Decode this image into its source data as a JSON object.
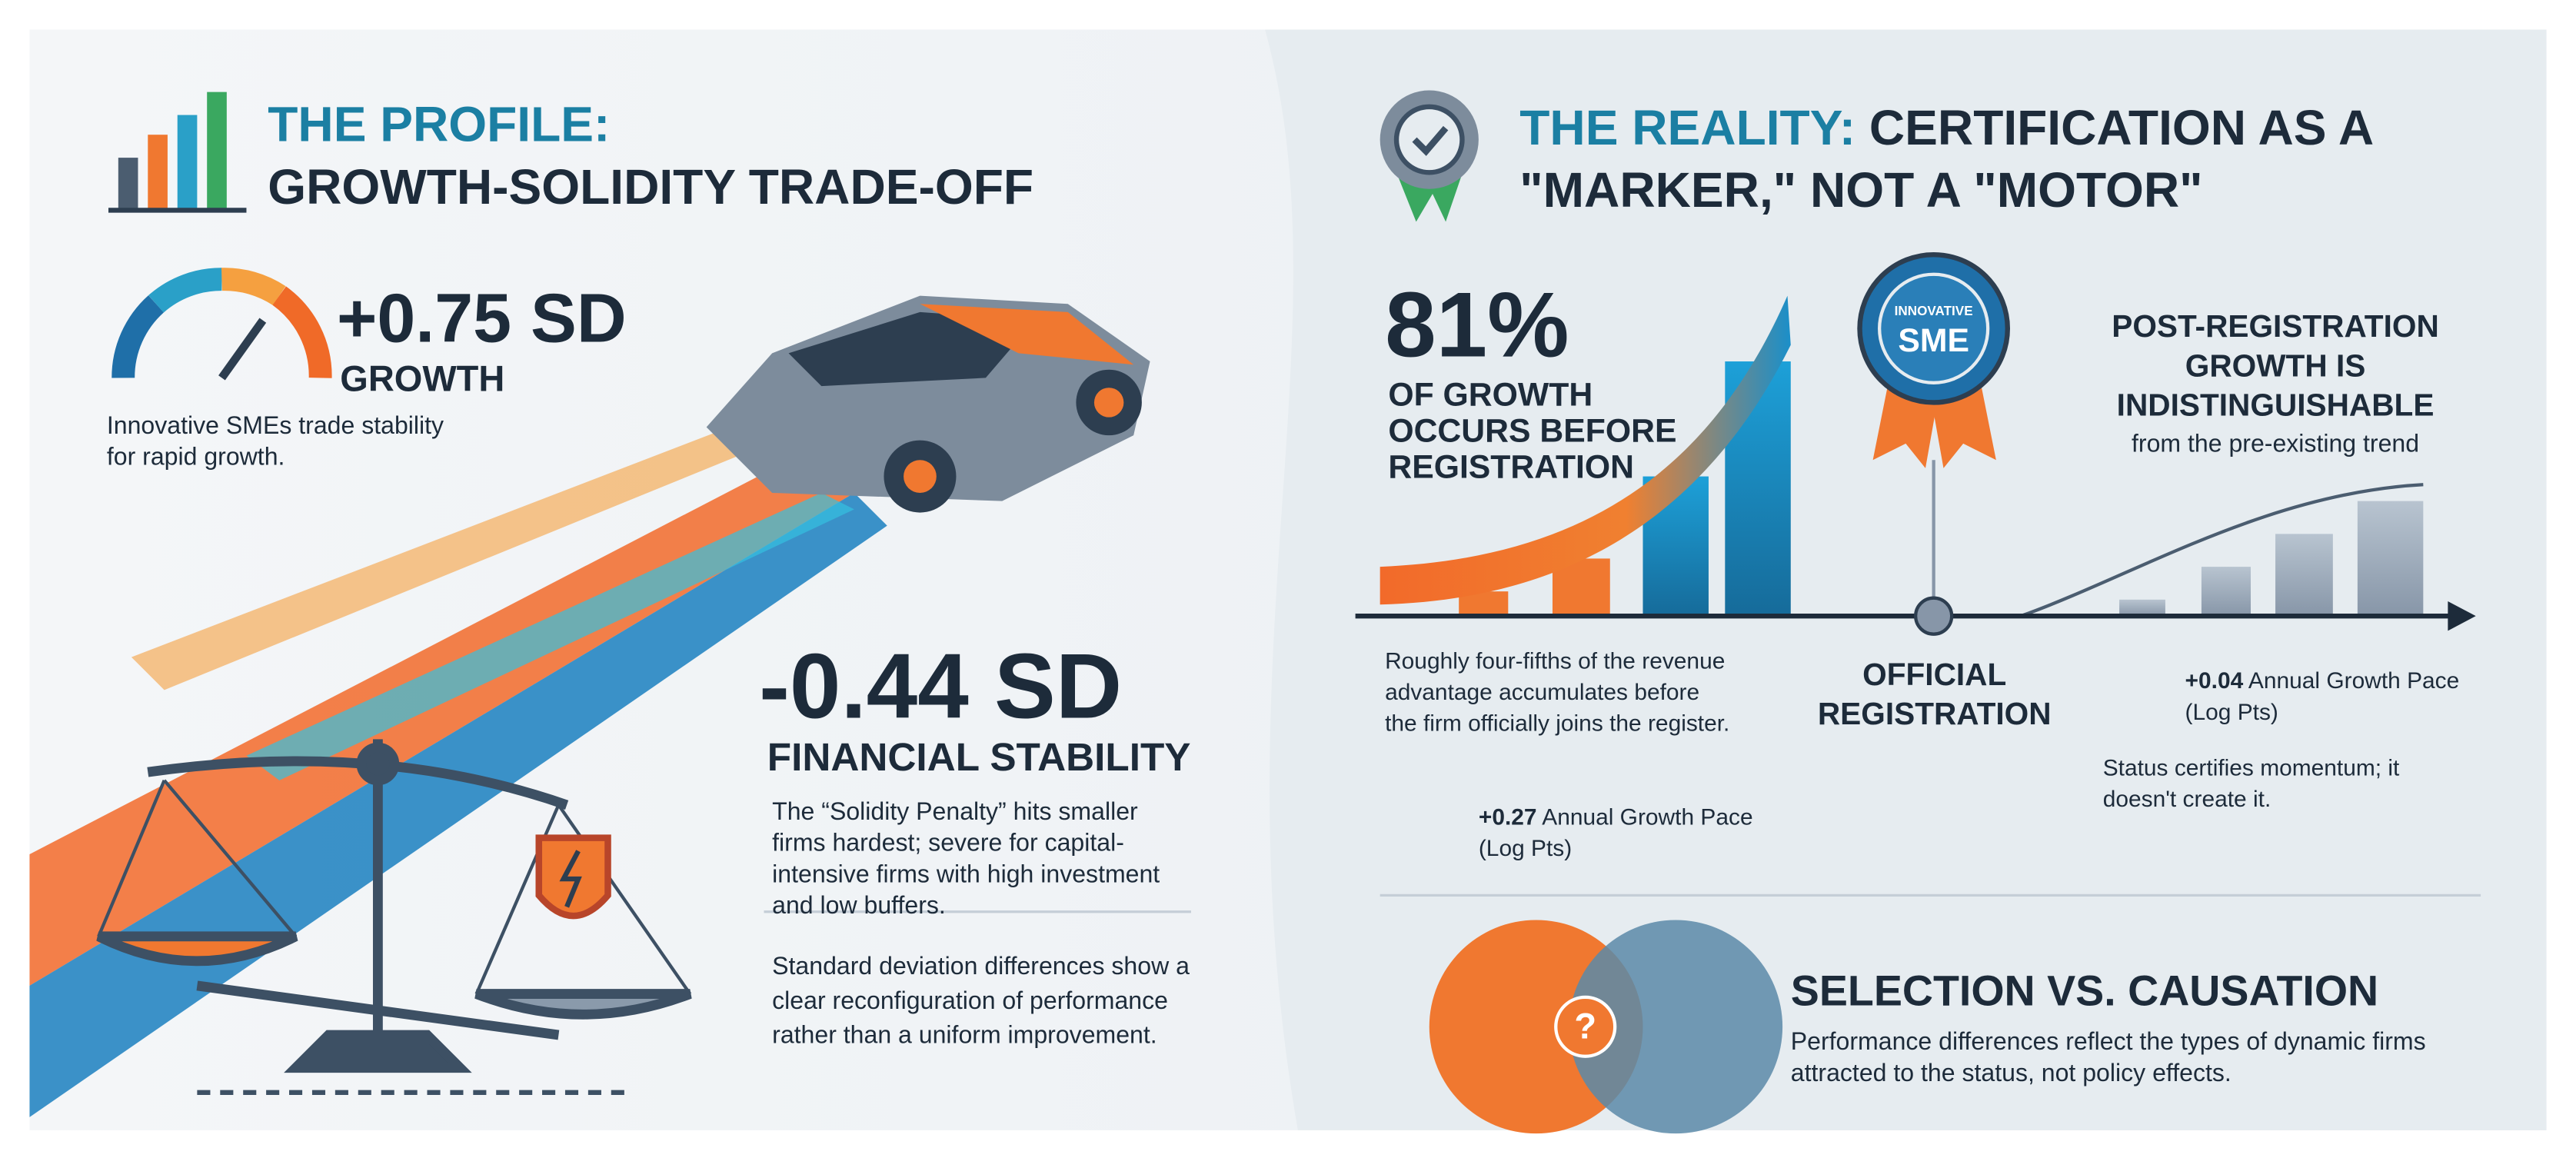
{
  "left": {
    "title": {
      "line1": "THE PROFILE:",
      "line2": "GROWTH-SOLIDITY TRADE-OFF"
    },
    "growth": {
      "value": "+0.75 SD",
      "label": "GROWTH",
      "note": "Innovative SMEs trade stability for rapid growth."
    },
    "stability": {
      "value": "-0.44 SD",
      "label": "FINANCIAL STABILITY",
      "note": "The “Solidity Penalty” hits smaller firms hardest; severe for capital-intensive firms with high investment and low buffers."
    },
    "footnote": "Standard deviation differences show a clear reconfiguration of performance rather than a uniform improvement."
  },
  "right": {
    "title": {
      "highlight": "THE REALITY:",
      "rest": "CERTIFICATION AS A \"MARKER,\" NOT A \"MOTOR\""
    },
    "badge": {
      "top": "INNOVATIVE",
      "main": "SME"
    },
    "stat": {
      "value": "81%",
      "label": "OF GROWTH OCCURS BEFORE REGISTRATION"
    },
    "post": {
      "title": "POST-REGISTRATION GROWTH IS INDISTINGUISHABLE",
      "subtitle": "from the pre-existing trend"
    },
    "pre_note": "Roughly four-fifths of the revenue advantage accumulates before the firm officially joins the register.",
    "pre_pace": {
      "value": "+0.27",
      "label": "Annual Growth Pace (Log Pts)"
    },
    "registration": "OFFICIAL REGISTRATION",
    "post_pace": {
      "value": "+0.04",
      "label": "Annual Growth Pace (Log Pts)"
    },
    "post_note": "Status certifies momentum; it doesn't create it.",
    "selection": {
      "symbol": "?",
      "title": "SELECTION VS. CAUSATION",
      "text": "Performance differences reflect the types of dynamic firms attracted to the status, not policy effects."
    }
  }
}
